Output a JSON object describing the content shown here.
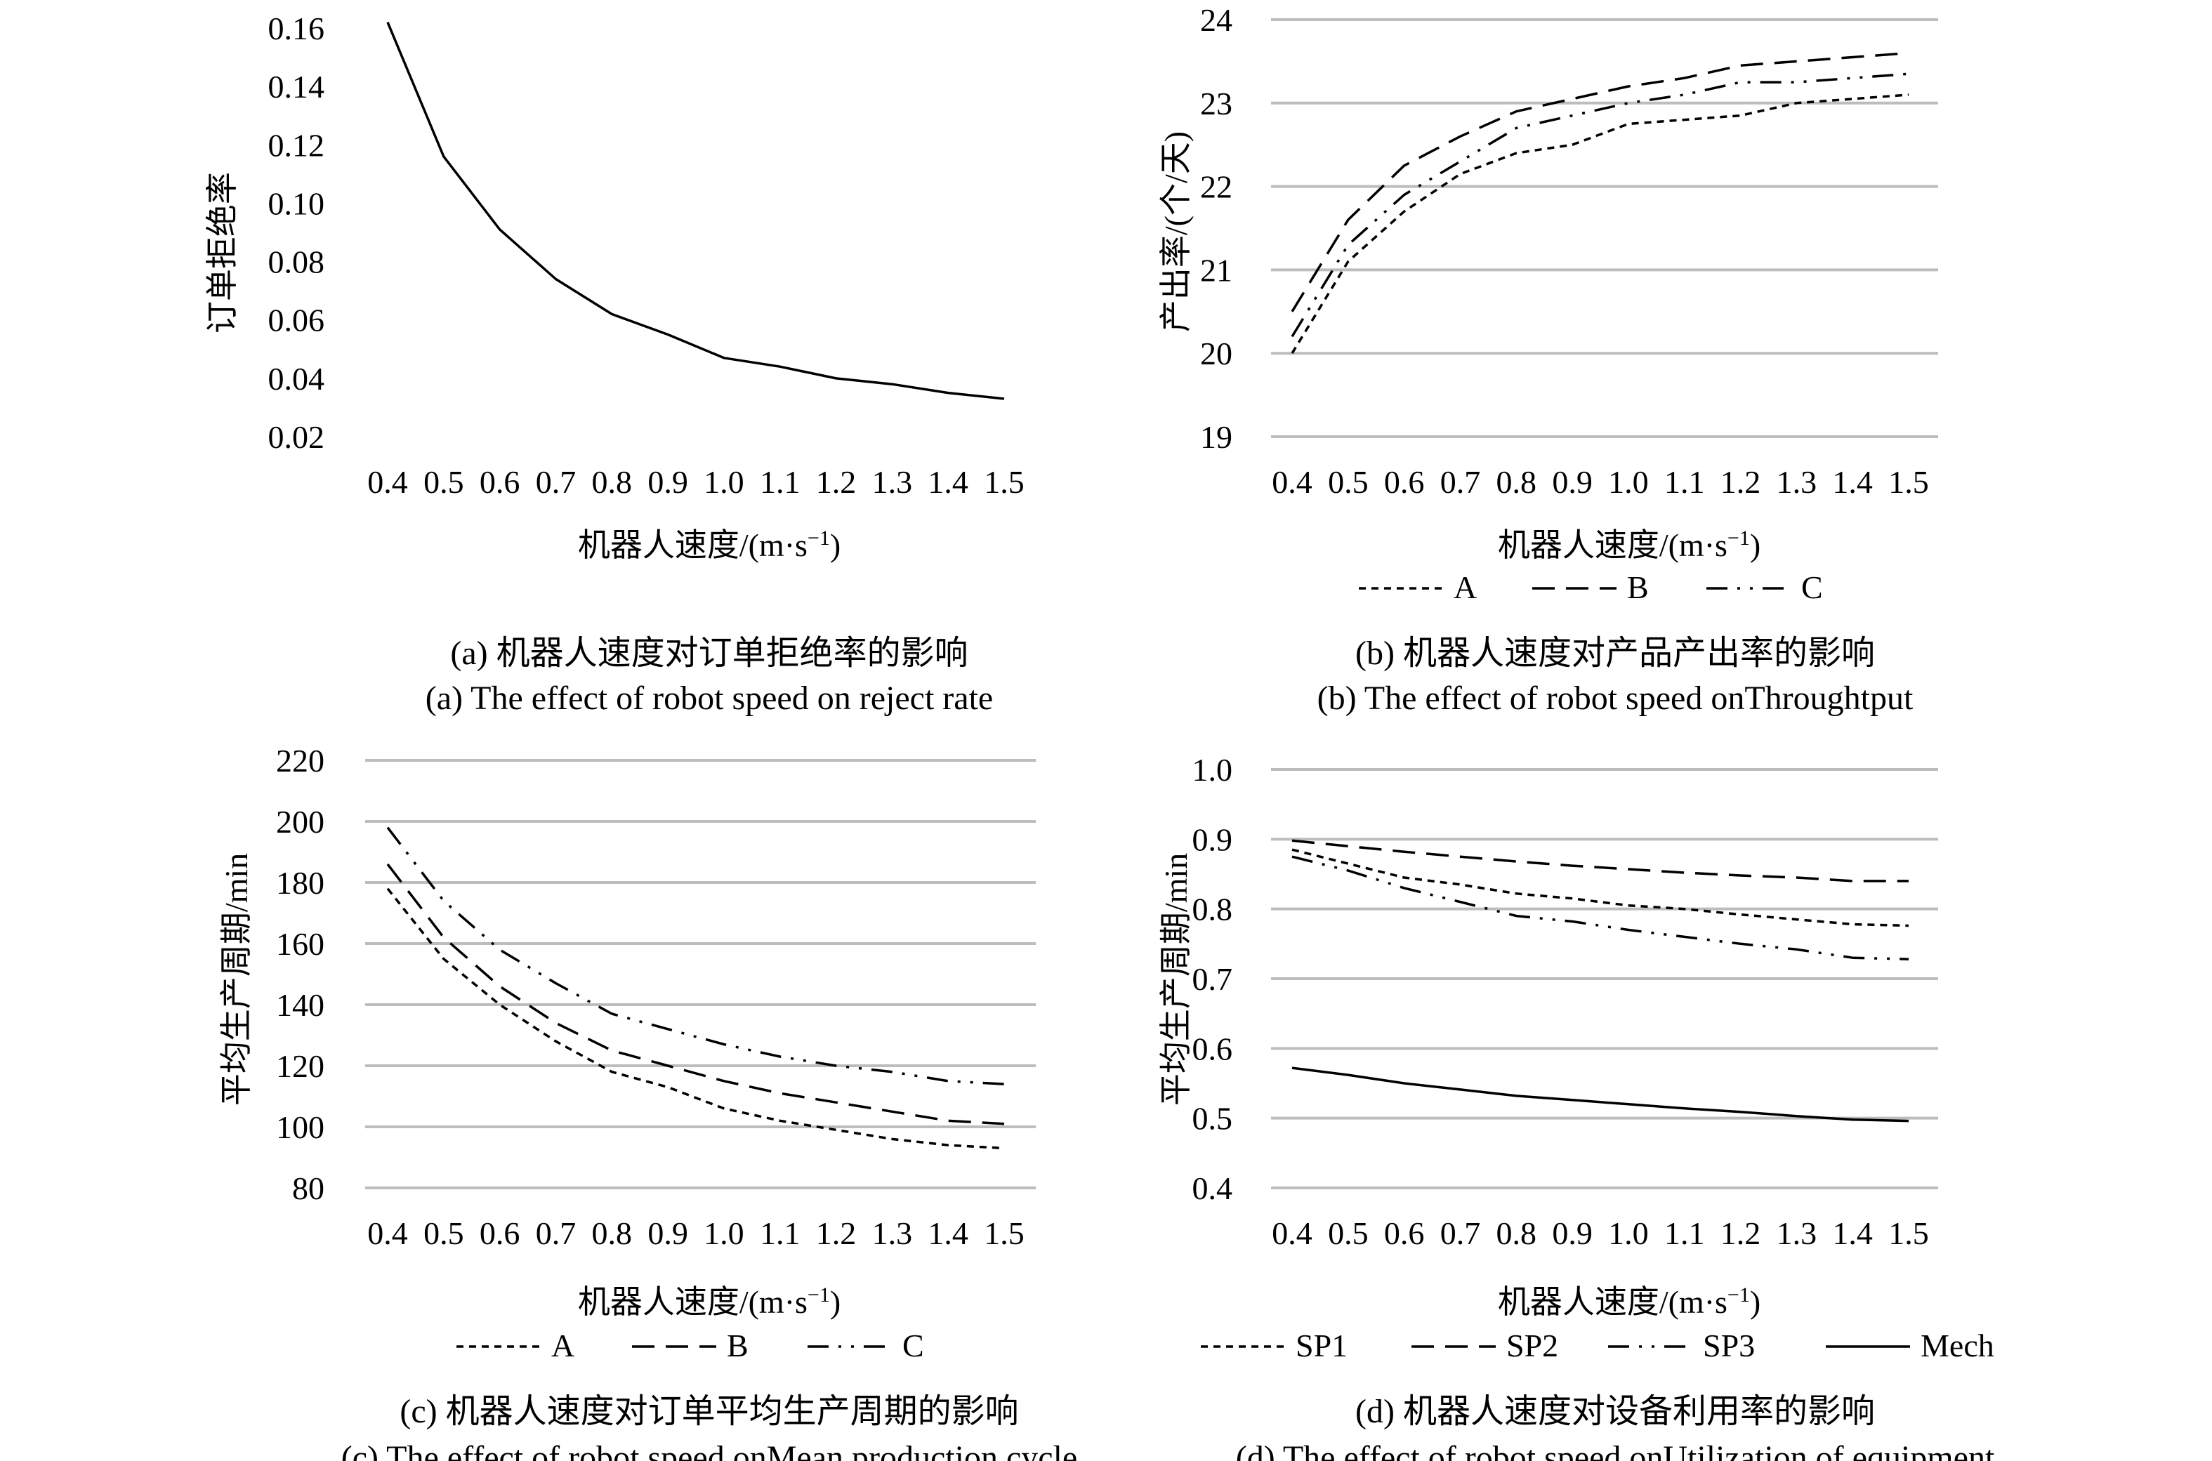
{
  "xlabel": "机器人速度/(m·s",
  "xlabel_sup": "−1",
  "xlabel_end": ")",
  "chart_data": [
    {
      "id": "a",
      "type": "line",
      "ylabel": "订单拒绝率",
      "ylim": [
        0.02,
        0.16
      ],
      "yticks": [
        "0.16",
        "0.14",
        "0.12",
        "0.10",
        "0.08",
        "0.06",
        "0.04",
        "0.02"
      ],
      "grid": false,
      "categories": [
        "0.4",
        "0.5",
        "0.6",
        "0.7",
        "0.8",
        "0.9",
        "1.0",
        "1.1",
        "1.2",
        "1.3",
        "1.4",
        "1.5"
      ],
      "series": [
        {
          "name": "",
          "dash": "solid",
          "values": [
            0.162,
            0.116,
            0.091,
            0.074,
            0.062,
            0.055,
            0.047,
            0.044,
            0.04,
            0.038,
            0.035,
            0.033
          ]
        }
      ],
      "caption_zh": "(a) 机器人速度对订单拒绝率的影响",
      "caption_en": "(a) The effect of robot speed on reject rate"
    },
    {
      "id": "b",
      "type": "line",
      "ylabel": "产出率/(个/天)",
      "ylim": [
        19,
        24
      ],
      "yticks": [
        "24",
        "23",
        "22",
        "21",
        "20",
        "19"
      ],
      "grid": true,
      "categories": [
        "0.4",
        "0.5",
        "0.6",
        "0.7",
        "0.8",
        "0.9",
        "1.0",
        "1.1",
        "1.2",
        "1.3",
        "1.4",
        "1.5"
      ],
      "series": [
        {
          "name": "A",
          "dash": "short",
          "values": [
            20.0,
            21.1,
            21.7,
            22.15,
            22.4,
            22.5,
            22.75,
            22.8,
            22.85,
            23.0,
            23.05,
            23.1
          ]
        },
        {
          "name": "B",
          "dash": "long",
          "values": [
            20.5,
            21.6,
            22.25,
            22.6,
            22.9,
            23.05,
            23.2,
            23.3,
            23.45,
            23.5,
            23.55,
            23.6
          ]
        },
        {
          "name": "C",
          "dash": "dashdot",
          "values": [
            20.2,
            21.3,
            21.9,
            22.3,
            22.7,
            22.85,
            23.0,
            23.1,
            23.25,
            23.25,
            23.3,
            23.35
          ]
        }
      ],
      "caption_zh": "(b) 机器人速度对产品产出率的影响",
      "caption_en": "(b) The effect of robot speed onThroughtput"
    },
    {
      "id": "c",
      "type": "line",
      "ylabel": "平均生产周期/min",
      "ylim": [
        80,
        220
      ],
      "yticks": [
        "220",
        "200",
        "180",
        "160",
        "140",
        "120",
        "100",
        "80"
      ],
      "grid": true,
      "categories": [
        "0.4",
        "0.5",
        "0.6",
        "0.7",
        "0.8",
        "0.9",
        "1.0",
        "1.1",
        "1.2",
        "1.3",
        "1.4",
        "1.5"
      ],
      "series": [
        {
          "name": "A",
          "dash": "short",
          "values": [
            178,
            155,
            140,
            128,
            118,
            113,
            106,
            102,
            99,
            96,
            94,
            93
          ]
        },
        {
          "name": "B",
          "dash": "long",
          "values": [
            186,
            162,
            146,
            134,
            125,
            120,
            115,
            111,
            108,
            105,
            102,
            101
          ]
        },
        {
          "name": "C",
          "dash": "dashdot",
          "values": [
            198,
            174,
            158,
            147,
            137,
            132,
            127,
            123,
            120,
            118,
            115,
            114
          ]
        }
      ],
      "caption_zh": "(c) 机器人速度对订单平均生产周期的影响",
      "caption_en": "(c) The effect of robot speed onMean production cycle"
    },
    {
      "id": "d",
      "type": "line",
      "ylabel": "平均生产周期/min",
      "ylim": [
        0.4,
        1.0
      ],
      "yticks": [
        "1.0",
        "0.9",
        "0.8",
        "0.7",
        "0.6",
        "0.5",
        "0.4"
      ],
      "grid": true,
      "categories": [
        "0.4",
        "0.5",
        "0.6",
        "0.7",
        "0.8",
        "0.9",
        "1.0",
        "1.1",
        "1.2",
        "1.3",
        "1.4",
        "1.5"
      ],
      "series": [
        {
          "name": "SP1",
          "dash": "short",
          "values": [
            0.885,
            0.865,
            0.845,
            0.835,
            0.822,
            0.815,
            0.805,
            0.8,
            0.792,
            0.785,
            0.778,
            0.776
          ]
        },
        {
          "name": "SP2",
          "dash": "long",
          "values": [
            0.898,
            0.89,
            0.882,
            0.875,
            0.868,
            0.862,
            0.857,
            0.852,
            0.848,
            0.845,
            0.84,
            0.84
          ]
        },
        {
          "name": "SP3",
          "dash": "dashdot",
          "values": [
            0.875,
            0.855,
            0.83,
            0.81,
            0.79,
            0.782,
            0.77,
            0.76,
            0.75,
            0.742,
            0.73,
            0.728
          ]
        },
        {
          "name": "Mech",
          "dash": "solid",
          "values": [
            0.572,
            0.562,
            0.55,
            0.541,
            0.532,
            0.526,
            0.52,
            0.514,
            0.509,
            0.503,
            0.498,
            0.496
          ]
        }
      ],
      "caption_zh": "(d) 机器人速度对设备利用率的影响",
      "caption_en": "(d) The effect of robot speed onUtilization of equipment"
    }
  ]
}
